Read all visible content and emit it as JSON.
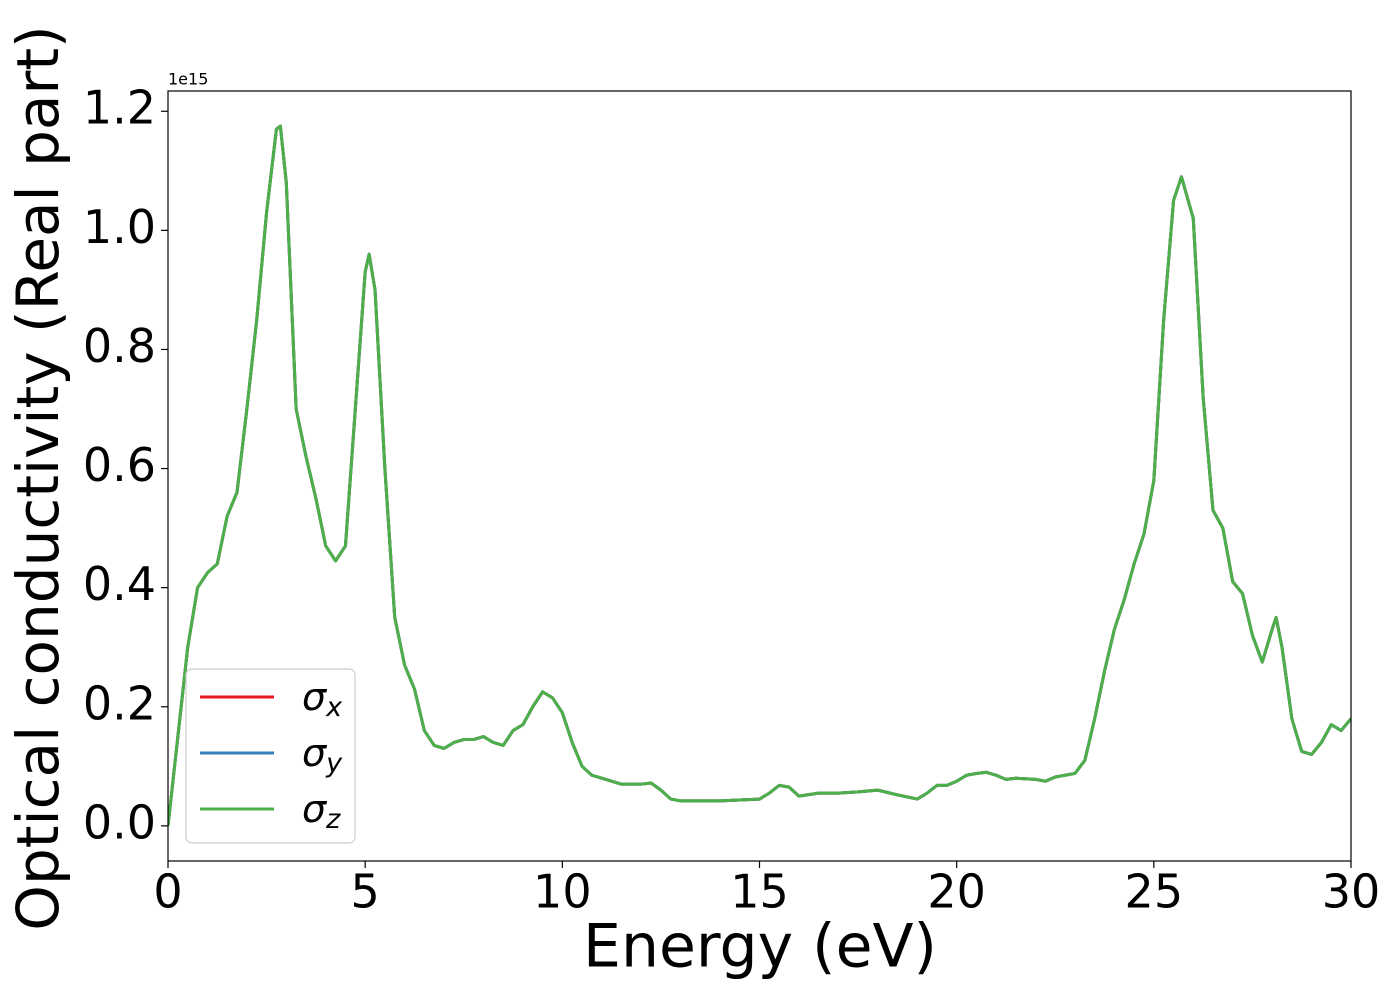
{
  "chart_data": {
    "type": "line",
    "xlabel": "Energy (eV)",
    "ylabel": "Optical conductivity (Real part)",
    "y_offset_label": "1e15",
    "xlim": [
      0,
      30
    ],
    "ylim": [
      -0.059,
      1.234
    ],
    "xticks": [
      0,
      5,
      10,
      15,
      20,
      25,
      30
    ],
    "yticks": [
      {
        "value": 0,
        "label": "0.0"
      },
      {
        "value": 0.2,
        "label": "0.2"
      },
      {
        "value": 0.4,
        "label": "0.4"
      },
      {
        "value": 0.6,
        "label": "0.6"
      },
      {
        "value": 0.8,
        "label": "0.8"
      },
      {
        "value": 1.0,
        "label": "1.0"
      },
      {
        "value": 1.2,
        "label": "1.2"
      }
    ],
    "legend": "lower left",
    "x": [
      0,
      0.25,
      0.5,
      0.75,
      1.0,
      1.25,
      1.5,
      1.75,
      2.0,
      2.25,
      2.5,
      2.75,
      2.85,
      3.0,
      3.25,
      3.5,
      3.75,
      4.0,
      4.25,
      4.5,
      4.75,
      5.0,
      5.1,
      5.25,
      5.5,
      5.75,
      6.0,
      6.25,
      6.5,
      6.75,
      7.0,
      7.25,
      7.5,
      7.75,
      8.0,
      8.25,
      8.5,
      8.75,
      9.0,
      9.25,
      9.5,
      9.75,
      10.0,
      10.25,
      10.5,
      10.75,
      11.0,
      11.5,
      12.0,
      12.25,
      12.5,
      12.75,
      13,
      14,
      15,
      15.25,
      15.5,
      15.75,
      16,
      16.5,
      17,
      17.5,
      18,
      18.5,
      19,
      19.25,
      19.5,
      19.75,
      20,
      20.25,
      20.5,
      20.75,
      21,
      21.25,
      21.5,
      22,
      22.25,
      22.5,
      23,
      23.25,
      23.5,
      23.75,
      24,
      24.25,
      24.5,
      24.75,
      25,
      25.25,
      25.5,
      25.7,
      26,
      26.25,
      26.5,
      26.75,
      27,
      27.25,
      27.5,
      27.75,
      28,
      28.1,
      28.25,
      28.5,
      28.75,
      29,
      29.25,
      29.5,
      29.75,
      30
    ],
    "series": [
      {
        "name": "σx",
        "color": "#e41a1c",
        "values": [
          0.0,
          0.15,
          0.3,
          0.4,
          0.425,
          0.44,
          0.52,
          0.56,
          0.7,
          0.85,
          1.03,
          1.17,
          1.175,
          1.08,
          0.7,
          0.62,
          0.55,
          0.47,
          0.445,
          0.47,
          0.7,
          0.93,
          0.96,
          0.9,
          0.6,
          0.35,
          0.27,
          0.23,
          0.16,
          0.135,
          0.13,
          0.14,
          0.145,
          0.145,
          0.15,
          0.14,
          0.135,
          0.16,
          0.17,
          0.2,
          0.225,
          0.215,
          0.19,
          0.14,
          0.1,
          0.085,
          0.08,
          0.07,
          0.07,
          0.072,
          0.06,
          0.045,
          0.042,
          0.042,
          0.045,
          0.055,
          0.068,
          0.065,
          0.05,
          0.055,
          0.055,
          0.057,
          0.06,
          0.052,
          0.045,
          0.055,
          0.068,
          0.068,
          0.075,
          0.085,
          0.088,
          0.09,
          0.085,
          0.078,
          0.08,
          0.078,
          0.075,
          0.082,
          0.088,
          0.11,
          0.18,
          0.26,
          0.33,
          0.38,
          0.44,
          0.49,
          0.58,
          0.85,
          1.05,
          1.09,
          1.02,
          0.72,
          0.53,
          0.5,
          0.41,
          0.39,
          0.32,
          0.275,
          0.33,
          0.35,
          0.3,
          0.18,
          0.125,
          0.12,
          0.14,
          0.17,
          0.16,
          0.18
        ]
      },
      {
        "name": "σy",
        "color": "#377eb8",
        "values": [
          0.0,
          0.15,
          0.3,
          0.4,
          0.425,
          0.44,
          0.52,
          0.56,
          0.7,
          0.85,
          1.03,
          1.17,
          1.175,
          1.08,
          0.7,
          0.62,
          0.55,
          0.47,
          0.445,
          0.47,
          0.7,
          0.93,
          0.96,
          0.9,
          0.6,
          0.35,
          0.27,
          0.23,
          0.16,
          0.135,
          0.13,
          0.14,
          0.145,
          0.145,
          0.15,
          0.14,
          0.135,
          0.16,
          0.17,
          0.2,
          0.225,
          0.215,
          0.19,
          0.14,
          0.1,
          0.085,
          0.08,
          0.07,
          0.07,
          0.072,
          0.06,
          0.045,
          0.042,
          0.042,
          0.045,
          0.055,
          0.068,
          0.065,
          0.05,
          0.055,
          0.055,
          0.057,
          0.06,
          0.052,
          0.045,
          0.055,
          0.068,
          0.068,
          0.075,
          0.085,
          0.088,
          0.09,
          0.085,
          0.078,
          0.08,
          0.078,
          0.075,
          0.082,
          0.088,
          0.11,
          0.18,
          0.26,
          0.33,
          0.38,
          0.44,
          0.49,
          0.58,
          0.85,
          1.05,
          1.09,
          1.02,
          0.72,
          0.53,
          0.5,
          0.41,
          0.39,
          0.32,
          0.275,
          0.33,
          0.35,
          0.3,
          0.18,
          0.125,
          0.12,
          0.14,
          0.17,
          0.16,
          0.18
        ]
      },
      {
        "name": "σz",
        "color": "#4daf4a",
        "values": [
          0.0,
          0.15,
          0.3,
          0.4,
          0.425,
          0.44,
          0.52,
          0.56,
          0.7,
          0.85,
          1.03,
          1.17,
          1.175,
          1.08,
          0.7,
          0.62,
          0.55,
          0.47,
          0.445,
          0.47,
          0.7,
          0.93,
          0.96,
          0.9,
          0.6,
          0.35,
          0.27,
          0.23,
          0.16,
          0.135,
          0.13,
          0.14,
          0.145,
          0.145,
          0.15,
          0.14,
          0.135,
          0.16,
          0.17,
          0.2,
          0.225,
          0.215,
          0.19,
          0.14,
          0.1,
          0.085,
          0.08,
          0.07,
          0.07,
          0.072,
          0.06,
          0.045,
          0.042,
          0.042,
          0.045,
          0.055,
          0.068,
          0.065,
          0.05,
          0.055,
          0.055,
          0.057,
          0.06,
          0.052,
          0.045,
          0.055,
          0.068,
          0.068,
          0.075,
          0.085,
          0.088,
          0.09,
          0.085,
          0.078,
          0.08,
          0.078,
          0.075,
          0.082,
          0.088,
          0.11,
          0.18,
          0.26,
          0.33,
          0.38,
          0.44,
          0.49,
          0.58,
          0.85,
          1.05,
          1.09,
          1.02,
          0.72,
          0.53,
          0.5,
          0.41,
          0.39,
          0.32,
          0.275,
          0.33,
          0.35,
          0.3,
          0.18,
          0.125,
          0.12,
          0.14,
          0.17,
          0.16,
          0.18
        ]
      }
    ]
  }
}
